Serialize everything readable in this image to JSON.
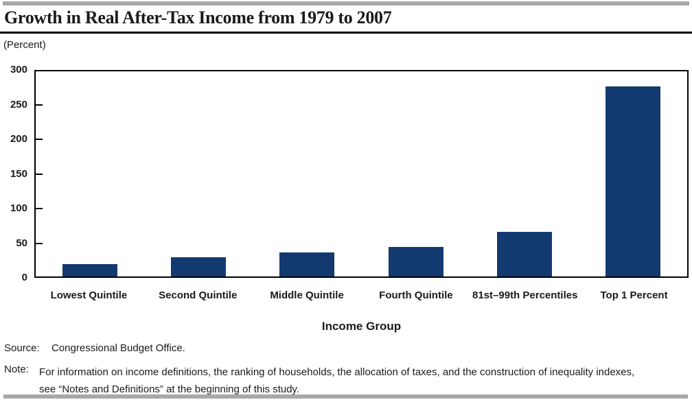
{
  "page": {
    "title": "Growth in Real After-Tax Income from 1979 to 2007",
    "percent_label": "(Percent)"
  },
  "source": {
    "label": "Source:",
    "text": "Congressional Budget Office."
  },
  "note": {
    "label": "Note:",
    "lines": [
      "For information on income definitions, the ranking of households, the allocation of taxes, and the construction of inequality indexes,",
      "see “Notes and Definitions” at the beginning of this study."
    ]
  },
  "chart_data": {
    "type": "bar",
    "title": "Growth in Real After-Tax Income from 1979 to 2007",
    "subtitle": "(Percent)",
    "categories": [
      "Lowest Quintile",
      "Second Quintile",
      "Middle Quintile",
      "Fourth Quintile",
      "81st–99th Percentiles",
      "Top 1 Percent"
    ],
    "values": [
      18,
      28,
      35,
      43,
      65,
      278
    ],
    "xlabel": "Income Group",
    "ylabel": "(Percent)",
    "ylim": [
      0,
      300
    ],
    "yticks": [
      0,
      50,
      100,
      150,
      200,
      250,
      300
    ],
    "grid": false,
    "legend": "none",
    "bar_color": "#123a70",
    "axis_color": "#000000",
    "accent_gray": "#a8a8a8"
  }
}
